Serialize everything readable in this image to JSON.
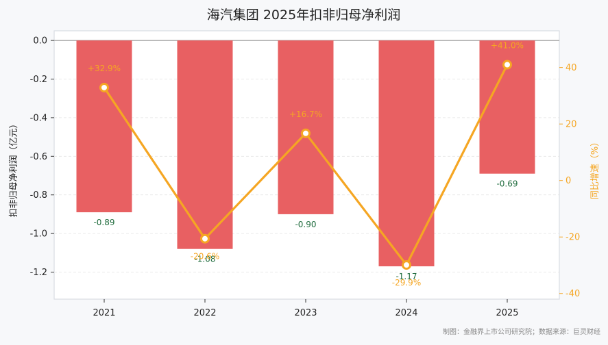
{
  "chart_data": {
    "type": "bar+line",
    "title": "海汽集团 2025年扣非归母净利润",
    "categories": [
      "2021",
      "2022",
      "2023",
      "2024",
      "2025"
    ],
    "bar_series": {
      "name": "扣非归母净利润",
      "values": [
        -0.89,
        -1.08,
        -0.9,
        -1.17,
        -0.69
      ],
      "labels": [
        "-0.89",
        "-1.08",
        "-0.90",
        "-1.17",
        "-0.69"
      ],
      "color": "#e86062"
    },
    "line_series": {
      "name": "同比增速",
      "values": [
        32.9,
        -20.6,
        16.7,
        -29.9,
        41.0
      ],
      "labels": [
        "+32.9%",
        "-20.6%",
        "+16.7%",
        "-29.9%",
        "+41.0%"
      ],
      "color": "#f5a623"
    },
    "ylabel_left": "扣非归母净利润（亿元）",
    "ylabel_right": "同比增速（%）",
    "ylim_left": [
      -1.34,
      0.05
    ],
    "ylim_right": [
      -42,
      53
    ],
    "yticks_left": [
      "0.0",
      "-0.2",
      "-0.4",
      "-0.6",
      "-0.8",
      "-1.0",
      "-1.2"
    ],
    "yticks_right": [
      "40",
      "20",
      "0",
      "-20",
      "-40"
    ],
    "grid": true
  },
  "footer": "制图：金融界上市公司研究院；数据来源：巨灵财经"
}
